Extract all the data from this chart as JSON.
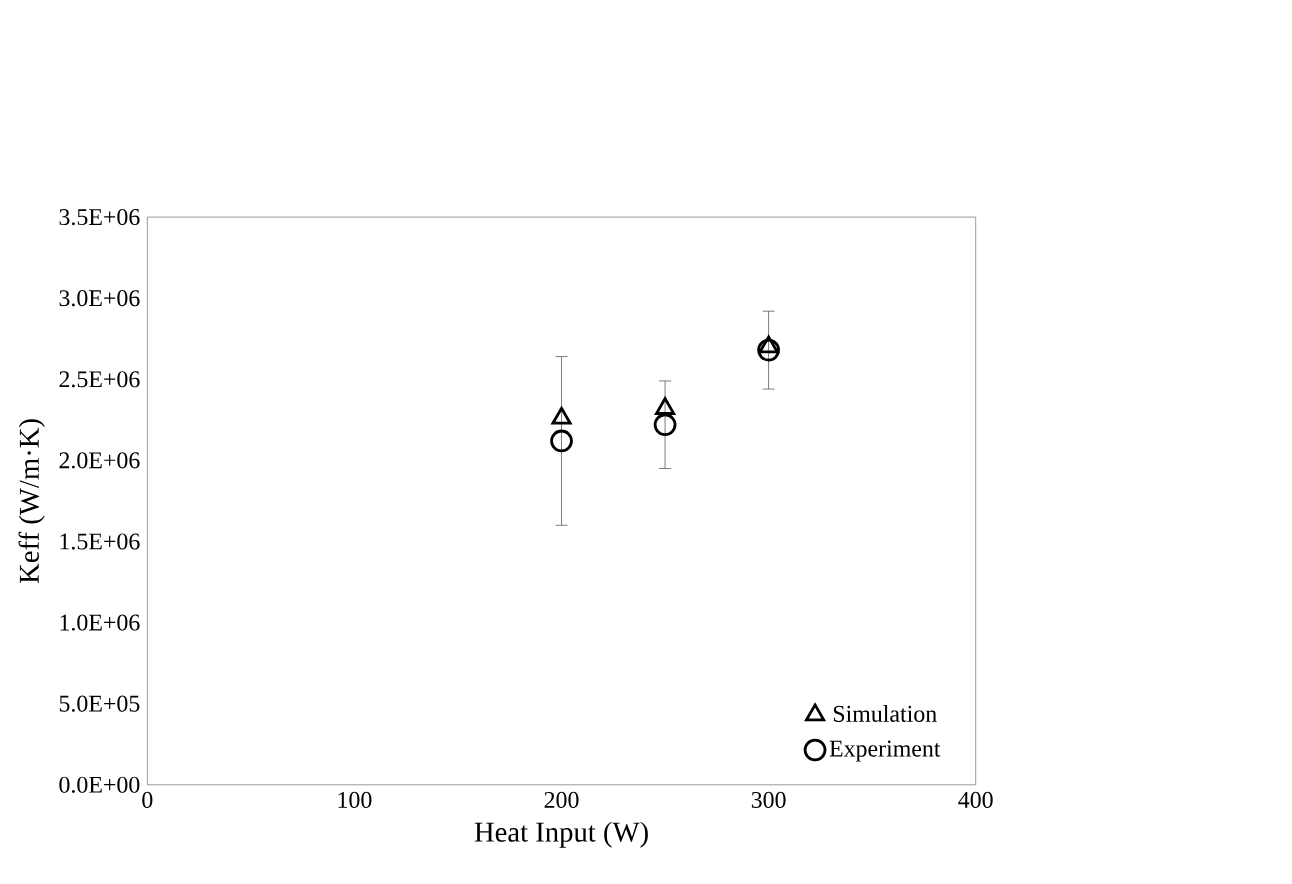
{
  "chart_data": {
    "type": "scatter",
    "xlabel": "Heat Input (W)",
    "ylabel": "Keff   (W/m·K)",
    "x": [
      200,
      250,
      300
    ],
    "series": [
      {
        "name": "Simulation",
        "color": "#000000",
        "marker": "triangle",
        "values": [
          2260000,
          2320000,
          2700000
        ]
      },
      {
        "name": "Experiment",
        "color": "#000000",
        "marker": "circle",
        "values": [
          2120000,
          2220000,
          2680000
        ],
        "errors": [
          520000,
          270000,
          240000
        ]
      }
    ],
    "xlim": [
      0,
      400
    ],
    "xticks": [
      0,
      100,
      200,
      300,
      400
    ],
    "ylim": [
      0,
      3500000
    ],
    "yticks": [
      {
        "value": 0,
        "label": "0.0E+00"
      },
      {
        "value": 500000,
        "label": "5.0E+05"
      },
      {
        "value": 1000000,
        "label": "1.0E+06"
      },
      {
        "value": 1500000,
        "label": "1.5E+06"
      },
      {
        "value": 2000000,
        "label": "2.0E+06"
      },
      {
        "value": 2500000,
        "label": "2.5E+06"
      },
      {
        "value": 3000000,
        "label": "3.0E+06"
      },
      {
        "value": 3500000,
        "label": "3.5E+06"
      }
    ],
    "grid": false,
    "legend": "bottom right"
  }
}
